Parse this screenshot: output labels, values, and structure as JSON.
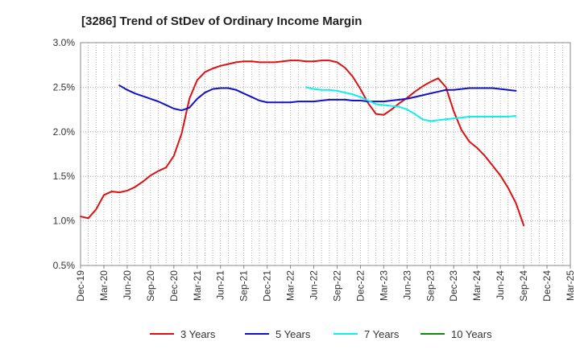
{
  "chart_data": {
    "type": "line",
    "title": "[3286]  Trend of StDev of Ordinary Income Margin",
    "xlabel": "",
    "ylabel": "",
    "ylim": [
      0.5,
      3.0
    ],
    "yticks": [
      "0.5%",
      "1.0%",
      "1.5%",
      "2.0%",
      "2.5%",
      "3.0%"
    ],
    "ytick_values": [
      0.5,
      1.0,
      1.5,
      2.0,
      2.5,
      3.0
    ],
    "xticks": [
      "Dec-19",
      "Mar-20",
      "Jun-20",
      "Sep-20",
      "Dec-20",
      "Mar-21",
      "Jun-21",
      "Sep-21",
      "Dec-21",
      "Mar-22",
      "Jun-22",
      "Sep-22",
      "Dec-22",
      "Mar-23",
      "Jun-23",
      "Sep-23",
      "Dec-23",
      "Mar-24",
      "Jun-24",
      "Sep-24",
      "Dec-24",
      "Mar-25"
    ],
    "grid": true,
    "legend_position": "bottom",
    "series": [
      {
        "name": "3 Years",
        "color": "#dd1111",
        "start_month_index": 0,
        "values": [
          1.05,
          1.03,
          1.13,
          1.29,
          1.33,
          1.32,
          1.34,
          1.38,
          1.44,
          1.51,
          1.56,
          1.6,
          1.73,
          1.98,
          2.37,
          2.58,
          2.67,
          2.71,
          2.74,
          2.76,
          2.78,
          2.79,
          2.79,
          2.78,
          2.78,
          2.78,
          2.79,
          2.8,
          2.8,
          2.79,
          2.79,
          2.8,
          2.8,
          2.78,
          2.72,
          2.62,
          2.48,
          2.32,
          2.2,
          2.19,
          2.25,
          2.32,
          2.38,
          2.45,
          2.51,
          2.56,
          2.6,
          2.5,
          2.23,
          2.02,
          1.89,
          1.82,
          1.73,
          1.62,
          1.51,
          1.37,
          1.2,
          0.95
        ]
      },
      {
        "name": "5 Years",
        "color": "#1111cc",
        "start_month_index": 5,
        "values": [
          2.52,
          2.47,
          2.43,
          2.4,
          2.37,
          2.34,
          2.3,
          2.26,
          2.24,
          2.27,
          2.37,
          2.44,
          2.48,
          2.49,
          2.49,
          2.47,
          2.43,
          2.39,
          2.35,
          2.33,
          2.33,
          2.33,
          2.33,
          2.34,
          2.34,
          2.34,
          2.35,
          2.36,
          2.36,
          2.36,
          2.35,
          2.35,
          2.34,
          2.34,
          2.34,
          2.35,
          2.36,
          2.37,
          2.39,
          2.41,
          2.43,
          2.45,
          2.47,
          2.47,
          2.48,
          2.49,
          2.49,
          2.49,
          2.49,
          2.48,
          2.47,
          2.46
        ]
      },
      {
        "name": "7 Years",
        "color": "#11eeee",
        "start_month_index": 29,
        "values": [
          2.5,
          2.48,
          2.47,
          2.47,
          2.46,
          2.44,
          2.42,
          2.39,
          2.35,
          2.31,
          2.3,
          2.29,
          2.28,
          2.25,
          2.2,
          2.14,
          2.12,
          2.13,
          2.14,
          2.15,
          2.16,
          2.17,
          2.17,
          2.17,
          2.17,
          2.17,
          2.17,
          2.18
        ]
      },
      {
        "name": "10 Years",
        "color": "#118811",
        "start_month_index": 0,
        "values": []
      }
    ]
  }
}
